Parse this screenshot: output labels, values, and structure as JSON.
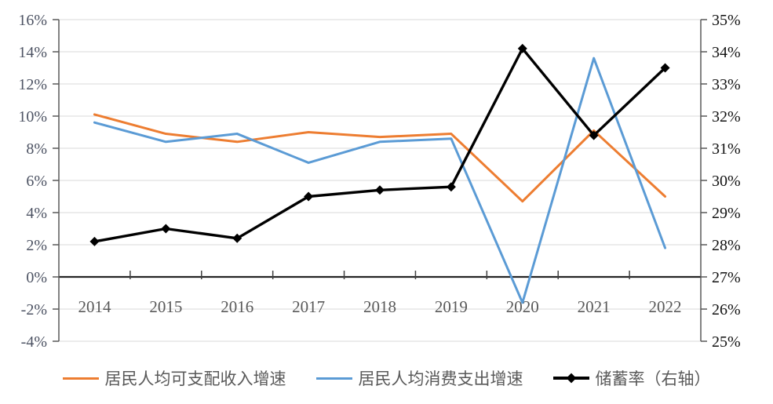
{
  "chart_data": {
    "type": "line",
    "title": "",
    "categories": [
      "2014",
      "2015",
      "2016",
      "2017",
      "2018",
      "2019",
      "2020",
      "2021",
      "2022"
    ],
    "series": [
      {
        "name": "居民人均可支配收入增速",
        "axis": "left",
        "color": "#ED7D31",
        "marker": "none",
        "values": [
          10.1,
          8.9,
          8.4,
          9.0,
          8.7,
          8.9,
          4.7,
          9.1,
          5.0
        ]
      },
      {
        "name": "居民人均消费支出增速",
        "axis": "left",
        "color": "#5B9BD5",
        "marker": "none",
        "values": [
          9.6,
          8.4,
          8.9,
          7.1,
          8.4,
          8.6,
          -1.6,
          13.6,
          1.8
        ]
      },
      {
        "name": "储蓄率（右轴）",
        "axis": "right",
        "color": "#000000",
        "marker": "diamond",
        "values": [
          28.1,
          28.5,
          28.2,
          29.5,
          29.7,
          29.8,
          34.1,
          31.4,
          33.5
        ]
      }
    ],
    "left_axis": {
      "min": -4,
      "max": 16,
      "step": 2,
      "ticks": [
        "16%",
        "14%",
        "12%",
        "10%",
        "8%",
        "6%",
        "4%",
        "2%",
        "0%",
        "-2%",
        "-4%"
      ]
    },
    "right_axis": {
      "min": 25,
      "max": 35,
      "step": 1,
      "ticks": [
        "35%",
        "34%",
        "33%",
        "32%",
        "31%",
        "30%",
        "29%",
        "28%",
        "27%",
        "26%",
        "25%"
      ]
    },
    "x_axis": {
      "labels": [
        "2014",
        "2015",
        "2016",
        "2017",
        "2018",
        "2019",
        "2020",
        "2021",
        "2022"
      ]
    },
    "grid": true,
    "legend_position": "bottom",
    "colors": {
      "gridline": "#d9d9d9",
      "axis_line": "#595959",
      "zero_axis_line": "#262626",
      "left_tick_text": "#4d5363",
      "right_tick_text": "#111111",
      "year_text": "#595959"
    }
  }
}
